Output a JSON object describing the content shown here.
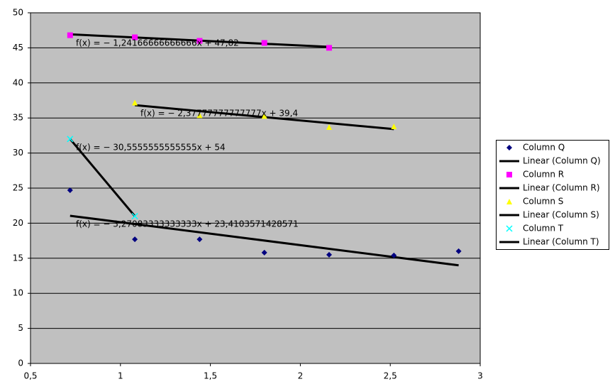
{
  "chart_data": {
    "type": "scatter",
    "xlim": [
      0.5,
      3
    ],
    "ylim": [
      0,
      50
    ],
    "xticks": [
      {
        "value": 0.5,
        "label": "0,5"
      },
      1,
      {
        "value": 1.5,
        "label": "1,5"
      },
      2,
      {
        "value": 2.5,
        "label": "2,5"
      },
      3
    ],
    "yticks": [
      0,
      5,
      10,
      15,
      20,
      25,
      30,
      35,
      40,
      45,
      50
    ],
    "grid": true,
    "legend": "right",
    "series": [
      {
        "name": "Column Q",
        "color": "#000080",
        "marker": "diamond",
        "x": [
          0.72,
          1.08,
          1.44,
          1.8,
          2.16,
          2.52,
          2.88
        ],
        "values": [
          24.7,
          17.7,
          17.7,
          15.8,
          15.5,
          15.4,
          16.0
        ],
        "trendline": {
          "name": "Linear (Column Q)",
          "slope": -3.27083333333333,
          "intercept": 23.4103571428571,
          "label": "f(x) = − 3,27083333333333x + 23,4103571428571"
        }
      },
      {
        "name": "Column R",
        "color": "#ff00ff",
        "marker": "square",
        "x": [
          0.72,
          1.08,
          1.44,
          1.8,
          2.16
        ],
        "values": [
          46.8,
          46.5,
          46.0,
          45.7,
          45.0
        ],
        "trendline": {
          "name": "Linear (Column R)",
          "slope": -1.24166666666666,
          "intercept": 47.82,
          "label": "f(x) = − 1,24166666666666x + 47,82"
        }
      },
      {
        "name": "Column S",
        "color": "#ffff00",
        "marker": "triangle",
        "x": [
          1.08,
          1.44,
          1.8,
          2.16,
          2.52
        ],
        "values": [
          37.2,
          35.4,
          35.3,
          33.7,
          33.8
        ],
        "trendline": {
          "name": "Linear (Column S)",
          "slope": -2.37777777777777,
          "intercept": 39.4,
          "label": "f(x) = − 2,37777777777777x + 39,4"
        }
      },
      {
        "name": "Column T",
        "color": "#00ffff",
        "marker": "cross",
        "x": [
          0.72,
          1.08
        ],
        "values": [
          32,
          21
        ],
        "trendline": {
          "name": "Linear (Column T)",
          "slope": -30.5555555555555,
          "intercept": 54,
          "label": "f(x) = − 30,5555555555555x + 54"
        }
      }
    ]
  }
}
